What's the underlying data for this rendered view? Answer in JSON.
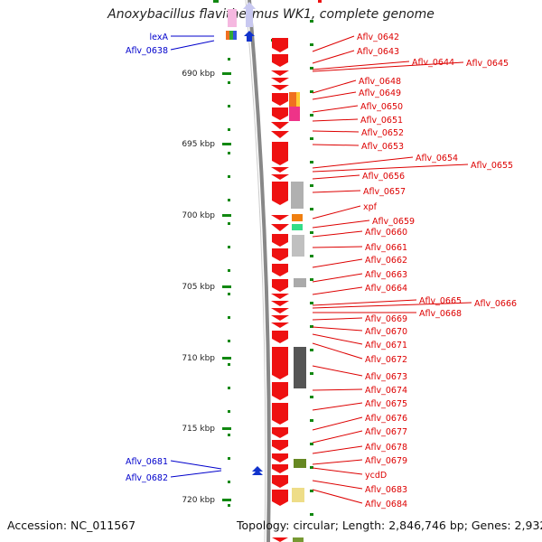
{
  "title": "Anoxybacillus flavithermus WK1, complete genome",
  "accession": "Accession: NC_011567",
  "topology": "Topology: circular; Length: 2,846,746 bp; Genes: 2,932",
  "colors": {
    "forward_gene": "#ee1111",
    "reverse_gene": "#1133cc",
    "label_forward": "#dd0000",
    "label_reverse": "#0000cc",
    "backbone": "#888888",
    "tick": "#118811"
  },
  "scale_labels": [
    "690 kbp",
    "695 kbp",
    "700 kbp",
    "705 kbp",
    "710 kbp",
    "715 kbp",
    "720 kbp"
  ],
  "reverse_genes": [
    "lexA",
    "Aflv_0638",
    "Aflv_0681",
    "Aflv_0682"
  ],
  "forward_genes": [
    "Aflv_0642",
    "Aflv_0643",
    "Aflv_0644",
    "Aflv_0645",
    "Aflv_0648",
    "Aflv_0649",
    "Aflv_0650",
    "Aflv_0651",
    "Aflv_0652",
    "Aflv_0653",
    "Aflv_0654",
    "Aflv_0655",
    "Aflv_0656",
    "Aflv_0657",
    "xpf",
    "Aflv_0659",
    "Aflv_0660",
    "Aflv_0661",
    "Aflv_0662",
    "Aflv_0663",
    "Aflv_0664",
    "Aflv_0665",
    "Aflv_0666",
    "Aflv_0668",
    "Aflv_0669",
    "Aflv_0670",
    "Aflv_0671",
    "Aflv_0672",
    "Aflv_0673",
    "Aflv_0674",
    "Aflv_0675",
    "Aflv_0676",
    "Aflv_0677",
    "Aflv_0678",
    "Aflv_0679",
    "ycdD",
    "Aflv_0683",
    "Aflv_0684"
  ]
}
